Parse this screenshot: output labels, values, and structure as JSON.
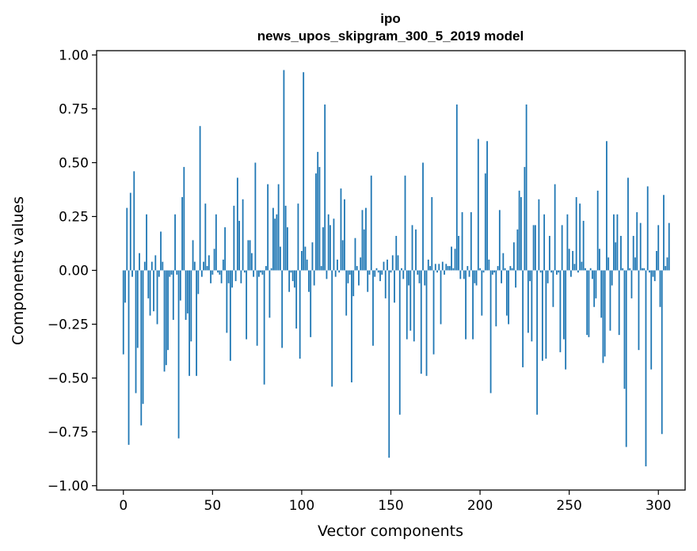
{
  "chart_data": {
    "type": "bar",
    "title": "ipo",
    "subtitle": "news_upos_skipgram_300_5_2019 model",
    "xlabel": "Vector components",
    "ylabel": "Components values",
    "xlim": [
      -15,
      315
    ],
    "ylim": [
      -1.02,
      1.02
    ],
    "xticks": [
      0,
      50,
      100,
      150,
      200,
      250,
      300
    ],
    "xtick_labels": [
      "0",
      "50",
      "100",
      "150",
      "200",
      "250",
      "300"
    ],
    "yticks": [
      1.0,
      0.75,
      0.5,
      0.25,
      0.0,
      -0.25,
      -0.5,
      -0.75,
      -1.0
    ],
    "ytick_labels": [
      "1.00",
      "0.75",
      "0.50",
      "0.25",
      "0.00",
      "−0.25",
      "−0.50",
      "−0.75",
      "−1.00"
    ],
    "color": "#1f77b4",
    "grid": false,
    "values": [
      -0.39,
      -0.15,
      0.29,
      -0.81,
      0.36,
      -0.03,
      0.46,
      -0.57,
      -0.36,
      0.08,
      -0.72,
      -0.62,
      0.04,
      0.26,
      -0.13,
      -0.21,
      0.04,
      -0.19,
      0.07,
      -0.25,
      -0.03,
      0.18,
      0.04,
      -0.47,
      -0.44,
      -0.37,
      -0.03,
      -0.02,
      -0.23,
      0.26,
      -0.02,
      -0.78,
      -0.14,
      0.34,
      0.48,
      -0.23,
      -0.2,
      -0.49,
      -0.33,
      0.14,
      0.04,
      -0.49,
      -0.11,
      0.67,
      -0.03,
      0.04,
      0.31,
      0.02,
      0.07,
      -0.06,
      -0.02,
      0.1,
      0.26,
      -0.01,
      -0.02,
      -0.06,
      0.05,
      0.2,
      -0.29,
      -0.06,
      -0.42,
      -0.08,
      0.3,
      -0.05,
      0.43,
      0.23,
      -0.06,
      0.33,
      -0.01,
      -0.32,
      0.14,
      0.14,
      0.08,
      -0.03,
      0.5,
      -0.35,
      -0.03,
      -0.01,
      -0.02,
      -0.53,
      0.02,
      0.4,
      -0.22,
      0.01,
      0.29,
      0.24,
      0.26,
      0.4,
      0.11,
      -0.36,
      0.93,
      0.3,
      0.2,
      -0.1,
      -0.01,
      -0.05,
      -0.08,
      -0.27,
      0.31,
      -0.41,
      0.09,
      0.92,
      0.11,
      0.05,
      -0.1,
      -0.31,
      0.13,
      -0.07,
      0.45,
      0.55,
      0.48,
      0.02,
      0.2,
      0.77,
      -0.04,
      0.26,
      0.21,
      -0.54,
      0.24,
      -0.03,
      0.05,
      -0.01,
      0.38,
      0.14,
      0.33,
      -0.21,
      -0.06,
      -0.02,
      -0.52,
      -0.12,
      0.15,
      0.02,
      -0.07,
      0.06,
      0.28,
      0.19,
      0.29,
      -0.1,
      -0.02,
      0.44,
      -0.35,
      -0.03,
      0.01,
      -0.01,
      -0.05,
      -0.02,
      0.04,
      -0.13,
      0.05,
      -0.87,
      -0.01,
      0.07,
      -0.15,
      0.16,
      0.07,
      -0.67,
      0.01,
      -0.04,
      0.44,
      -0.32,
      -0.07,
      -0.28,
      0.21,
      -0.33,
      0.19,
      -0.02,
      -0.06,
      -0.48,
      0.5,
      -0.07,
      -0.49,
      0.05,
      0.02,
      0.34,
      -0.39,
      0.03,
      -0.01,
      0.03,
      -0.25,
      0.04,
      -0.02,
      0.03,
      0.02,
      0.02,
      0.11,
      0.01,
      0.1,
      0.77,
      0.16,
      -0.04,
      0.27,
      -0.04,
      -0.32,
      0.02,
      -0.03,
      0.27,
      -0.32,
      -0.06,
      -0.07,
      0.61,
      0.01,
      -0.21,
      -0.01,
      0.45,
      0.6,
      0.05,
      -0.57,
      -0.02,
      -0.01,
      -0.26,
      0.02,
      0.28,
      -0.06,
      0.08,
      0.01,
      -0.21,
      -0.25,
      0.02,
      0.01,
      0.13,
      -0.08,
      0.19,
      0.37,
      0.34,
      -0.45,
      0.48,
      0.77,
      -0.29,
      -0.05,
      -0.33,
      0.21,
      0.21,
      -0.67,
      0.33,
      -0.01,
      -0.42,
      0.26,
      -0.41,
      -0.06,
      0.16,
      -0.01,
      -0.17,
      0.4,
      -0.02,
      -0.01,
      -0.38,
      0.21,
      -0.32,
      -0.46,
      0.26,
      0.1,
      -0.03,
      0.09,
      0.03,
      0.34,
      -0.01,
      0.31,
      0.04,
      0.23,
      0.01,
      -0.3,
      -0.31,
      0.01,
      -0.04,
      -0.17,
      -0.13,
      0.37,
      0.1,
      -0.22,
      -0.43,
      -0.4,
      0.6,
      0.06,
      -0.28,
      -0.07,
      0.26,
      0.13,
      0.26,
      -0.3,
      0.16,
      0.01,
      -0.55,
      -0.82,
      0.43,
      0.01,
      -0.13,
      0.16,
      0.06,
      0.27,
      -0.37,
      0.22,
      0.01,
      0.01,
      -0.91,
      0.39,
      -0.01,
      -0.46,
      -0.03,
      -0.05,
      0.09,
      0.21,
      -0.17,
      -0.76,
      0.35,
      0.02,
      0.06,
      0.22
    ]
  }
}
